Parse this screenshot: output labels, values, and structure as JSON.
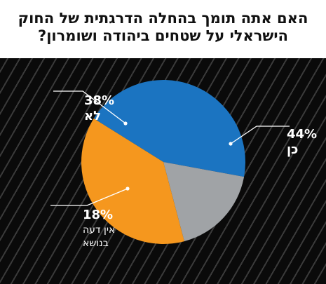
{
  "title": {
    "line1": "האם אתה תומך בהחלה הדרגתית של החוק",
    "line2": "הישראלי על שטחים ביהודה ושומרון?"
  },
  "colors": {
    "yes": "#1B74C1",
    "no": "#F5971E",
    "no_opinion": "#A0A3A6",
    "background": "#0a0a0a",
    "stripe": "#3a3a3a"
  },
  "chart_data": {
    "type": "pie",
    "title": "האם אתה תומך בהחלה הדרגתית של החוק הישראלי על שטחים ביהודה ושומרון?",
    "slices": [
      {
        "label": "כן",
        "value": 44,
        "value_label": "44%",
        "color": "#1B74C1"
      },
      {
        "label": "אין דעה בנושא",
        "label_lines": [
          "אין דעה",
          "בנושא"
        ],
        "value": 18,
        "value_label": "18%",
        "color": "#A0A3A6"
      },
      {
        "label": "לא",
        "value": 38,
        "value_label": "38%",
        "color": "#F5971E"
      }
    ]
  }
}
